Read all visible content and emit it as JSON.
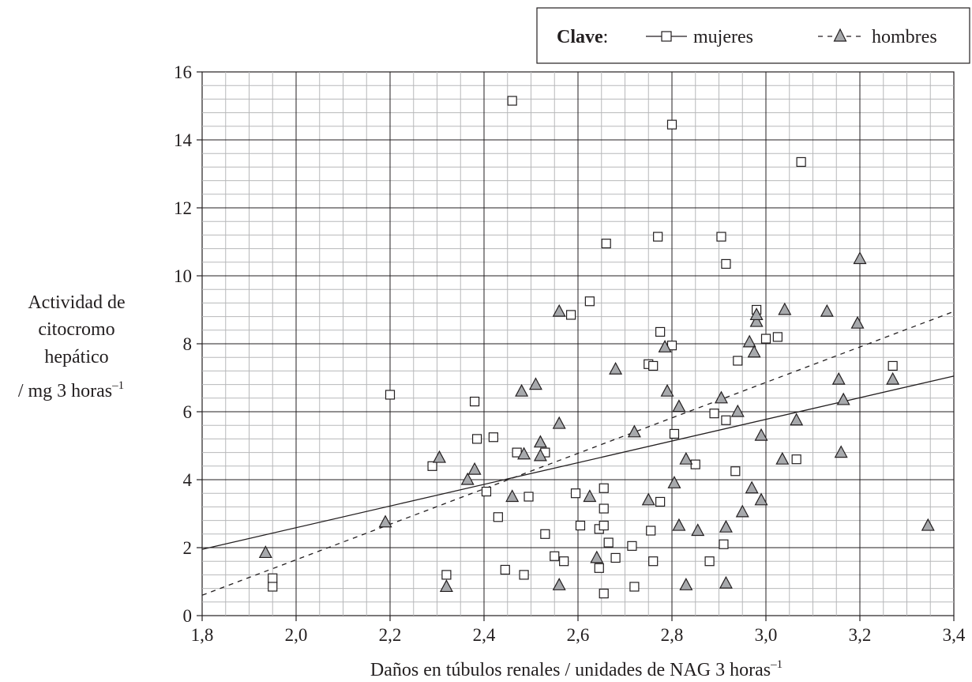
{
  "chart_data": {
    "type": "scatter",
    "title": "",
    "xlabel": "Daños en túbulos renales / unidades de NAG 3 horas",
    "xlabel_superscript": "–1",
    "ylabel_lines": [
      "Actividad de",
      "citocromo",
      "hepático",
      "/ mg 3 horas"
    ],
    "ylabel_superscript": "–1",
    "xlim": [
      1.8,
      3.4
    ],
    "ylim": [
      0,
      16
    ],
    "x_ticks": [
      "1,8",
      "2,0",
      "2,2",
      "2,4",
      "2,6",
      "2,8",
      "3,0",
      "3,2",
      "3,4"
    ],
    "y_ticks": [
      "0",
      "2",
      "4",
      "6",
      "8",
      "10",
      "12",
      "14",
      "16"
    ],
    "grid": true,
    "legend": {
      "placement": "top-right",
      "title": "Clave",
      "title_suffix": ":",
      "entries": [
        "mujeres",
        "hombres"
      ]
    },
    "series": [
      {
        "name": "mujeres",
        "marker": "square",
        "trendline": {
          "style": "solid",
          "x": [
            1.8,
            3.4
          ],
          "y": [
            1.95,
            7.05
          ]
        },
        "points": [
          [
            1.95,
            1.1
          ],
          [
            1.95,
            0.85
          ],
          [
            2.2,
            6.5
          ],
          [
            2.29,
            4.4
          ],
          [
            2.32,
            1.2
          ],
          [
            2.38,
            6.3
          ],
          [
            2.385,
            5.2
          ],
          [
            2.405,
            3.65
          ],
          [
            2.42,
            5.25
          ],
          [
            2.43,
            2.9
          ],
          [
            2.445,
            1.35
          ],
          [
            2.46,
            15.15
          ],
          [
            2.47,
            4.8
          ],
          [
            2.485,
            1.2
          ],
          [
            2.495,
            3.5
          ],
          [
            2.53,
            4.8
          ],
          [
            2.53,
            2.4
          ],
          [
            2.55,
            1.75
          ],
          [
            2.57,
            1.6
          ],
          [
            2.585,
            8.85
          ],
          [
            2.595,
            3.6
          ],
          [
            2.605,
            2.65
          ],
          [
            2.625,
            9.25
          ],
          [
            2.645,
            2.55
          ],
          [
            2.645,
            1.4
          ],
          [
            2.655,
            3.75
          ],
          [
            2.655,
            3.15
          ],
          [
            2.655,
            2.65
          ],
          [
            2.655,
            0.65
          ],
          [
            2.66,
            10.95
          ],
          [
            2.665,
            2.15
          ],
          [
            2.68,
            1.7
          ],
          [
            2.715,
            2.05
          ],
          [
            2.72,
            0.85
          ],
          [
            2.75,
            7.4
          ],
          [
            2.755,
            2.5
          ],
          [
            2.76,
            7.35
          ],
          [
            2.76,
            1.6
          ],
          [
            2.77,
            11.15
          ],
          [
            2.775,
            8.35
          ],
          [
            2.775,
            3.35
          ],
          [
            2.8,
            14.45
          ],
          [
            2.8,
            7.95
          ],
          [
            2.805,
            5.35
          ],
          [
            2.85,
            4.45
          ],
          [
            2.88,
            1.6
          ],
          [
            2.89,
            5.95
          ],
          [
            2.905,
            11.15
          ],
          [
            2.91,
            2.1
          ],
          [
            2.915,
            10.35
          ],
          [
            2.915,
            5.75
          ],
          [
            2.935,
            4.25
          ],
          [
            2.94,
            7.5
          ],
          [
            2.98,
            9.0
          ],
          [
            3.0,
            8.15
          ],
          [
            3.025,
            8.2
          ],
          [
            3.065,
            4.6
          ],
          [
            3.075,
            13.35
          ],
          [
            3.27,
            7.35
          ]
        ]
      },
      {
        "name": "hombres",
        "marker": "triangle",
        "trendline": {
          "style": "dashed",
          "x": [
            1.8,
            3.4
          ],
          "y": [
            0.6,
            8.95
          ]
        },
        "points": [
          [
            1.935,
            1.85
          ],
          [
            2.19,
            2.75
          ],
          [
            2.305,
            4.65
          ],
          [
            2.32,
            0.85
          ],
          [
            2.365,
            4.0
          ],
          [
            2.38,
            4.3
          ],
          [
            2.46,
            3.5
          ],
          [
            2.48,
            6.6
          ],
          [
            2.485,
            4.75
          ],
          [
            2.51,
            6.8
          ],
          [
            2.52,
            5.1
          ],
          [
            2.52,
            4.7
          ],
          [
            2.56,
            8.95
          ],
          [
            2.56,
            5.65
          ],
          [
            2.56,
            0.9
          ],
          [
            2.625,
            3.5
          ],
          [
            2.64,
            1.7
          ],
          [
            2.68,
            7.25
          ],
          [
            2.72,
            5.4
          ],
          [
            2.75,
            3.4
          ],
          [
            2.785,
            7.9
          ],
          [
            2.79,
            6.6
          ],
          [
            2.805,
            3.9
          ],
          [
            2.815,
            6.15
          ],
          [
            2.815,
            2.65
          ],
          [
            2.83,
            4.6
          ],
          [
            2.83,
            0.9
          ],
          [
            2.855,
            2.5
          ],
          [
            2.905,
            6.4
          ],
          [
            2.915,
            2.6
          ],
          [
            2.915,
            0.95
          ],
          [
            2.94,
            6.0
          ],
          [
            2.95,
            3.05
          ],
          [
            2.965,
            8.05
          ],
          [
            2.97,
            3.75
          ],
          [
            2.975,
            7.75
          ],
          [
            2.98,
            8.65
          ],
          [
            2.98,
            8.85
          ],
          [
            2.99,
            5.3
          ],
          [
            2.99,
            3.4
          ],
          [
            3.035,
            4.6
          ],
          [
            3.04,
            9.0
          ],
          [
            3.065,
            5.75
          ],
          [
            3.13,
            8.95
          ],
          [
            3.155,
            6.95
          ],
          [
            3.16,
            4.8
          ],
          [
            3.165,
            6.35
          ],
          [
            3.195,
            8.6
          ],
          [
            3.2,
            10.5
          ],
          [
            3.27,
            6.95
          ],
          [
            3.345,
            2.65
          ]
        ]
      }
    ]
  }
}
